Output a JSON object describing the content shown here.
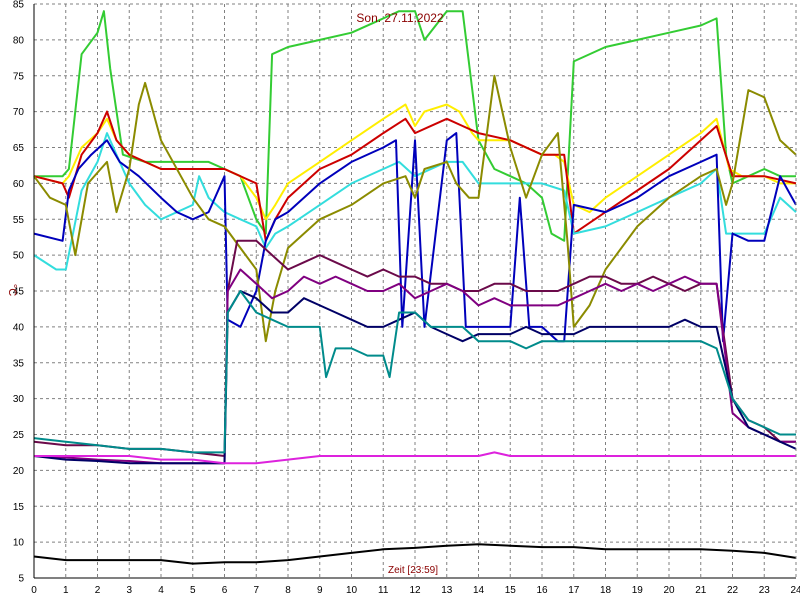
{
  "chart_data": {
    "type": "line",
    "title": "Son. 27.11.2022",
    "xlabel": "Zeit [23:59]",
    "ylabel": "°C",
    "xlim": [
      0,
      24
    ],
    "ylim": [
      5,
      85
    ],
    "xticks": [
      0,
      1,
      2,
      3,
      4,
      5,
      6,
      7,
      8,
      9,
      10,
      11,
      12,
      13,
      14,
      15,
      16,
      17,
      18,
      19,
      20,
      21,
      22,
      23,
      24
    ],
    "yticks": [
      5,
      10,
      15,
      20,
      25,
      30,
      35,
      40,
      45,
      50,
      55,
      60,
      65,
      70,
      75,
      80,
      85
    ],
    "grid": true,
    "series": [
      {
        "color": "#33cc33",
        "x": [
          0,
          0.9,
          1.1,
          1.5,
          2,
          2.2,
          2.4,
          2.8,
          3.5,
          4,
          4.5,
          5,
          5.5,
          6,
          6.5,
          7,
          7.3,
          7.5,
          8,
          9,
          10,
          11,
          11.5,
          12,
          12.3,
          13,
          13.5,
          14,
          14.5,
          15,
          15.5,
          16,
          16.3,
          16.7,
          17,
          18,
          19,
          20,
          21,
          21.5,
          21.8,
          22,
          22.5,
          23,
          23.5,
          24
        ],
        "y": [
          61,
          61,
          62,
          78,
          81,
          84,
          76,
          64,
          63,
          63,
          63,
          63,
          63,
          62,
          61,
          55,
          53,
          78,
          79,
          80,
          81,
          83,
          84,
          84,
          80,
          84,
          84,
          66,
          62,
          61,
          60,
          58,
          53,
          52,
          77,
          79,
          80,
          81,
          82,
          83,
          64,
          60,
          61,
          62,
          61,
          61
        ]
      },
      {
        "color": "#ffee00",
        "x": [
          0,
          0.9,
          1.1,
          1.5,
          2,
          2.3,
          2.6,
          3,
          3.5,
          4,
          4.5,
          5,
          5.5,
          6,
          6.5,
          7,
          7.3,
          7.6,
          8,
          9,
          10,
          11,
          11.7,
          12,
          12.3,
          13,
          13.4,
          13.8,
          14,
          14.5,
          15,
          15.5,
          16,
          16.4,
          16.7,
          17,
          17.5,
          18,
          19,
          20,
          21,
          21.5,
          21.9,
          22.3,
          23,
          23.5,
          24
        ],
        "y": [
          61,
          60,
          61,
          65,
          67,
          69,
          66,
          64,
          63,
          62,
          62,
          62,
          62,
          62,
          61,
          58,
          55,
          57,
          60,
          63,
          66,
          69,
          71,
          68,
          70,
          71,
          70,
          67,
          66,
          66,
          66,
          65,
          64,
          64,
          63,
          57,
          56,
          58,
          61,
          64,
          67,
          69,
          62,
          61,
          61,
          60,
          60
        ]
      },
      {
        "color": "#cc0000",
        "x": [
          0,
          0.9,
          1.1,
          1.5,
          2,
          2.3,
          2.6,
          3,
          4,
          5,
          6,
          7,
          7.3,
          7.6,
          8,
          9,
          10,
          11,
          11.7,
          12,
          13,
          13.5,
          14,
          15,
          16,
          16.7,
          17,
          18,
          19,
          20,
          21,
          21.5,
          22,
          23,
          24
        ],
        "y": [
          61,
          60,
          58,
          64,
          67,
          70,
          66,
          64,
          62,
          62,
          62,
          60,
          52,
          55,
          58,
          62,
          64,
          67,
          69,
          67,
          69,
          68,
          67,
          66,
          64,
          64,
          53,
          56,
          59,
          62,
          66,
          68,
          61,
          61,
          60
        ]
      },
      {
        "color": "#33dddd",
        "x": [
          0,
          0.7,
          1,
          1.5,
          2,
          2.3,
          2.7,
          3,
          3.5,
          4,
          4.5,
          5,
          5.2,
          5.5,
          6,
          6.5,
          7,
          7.3,
          7.6,
          8,
          9,
          10,
          11,
          11.5,
          12,
          13,
          13.5,
          14,
          15,
          16,
          16.7,
          17,
          18,
          19,
          20,
          21,
          21.5,
          21.8,
          22,
          22.5,
          23,
          23.5,
          24
        ],
        "y": [
          50,
          48,
          48,
          59,
          63,
          67,
          63,
          60,
          57,
          55,
          56,
          57,
          61,
          58,
          56,
          55,
          54,
          51,
          53,
          54,
          57,
          60,
          62,
          63,
          61,
          63,
          63,
          60,
          60,
          60,
          59,
          53,
          54,
          56,
          58,
          60,
          62,
          53,
          53,
          53,
          53,
          58,
          56
        ]
      },
      {
        "color": "#0000bb",
        "x": [
          0,
          0.9,
          1.1,
          1.4,
          1.8,
          2.3,
          2.7,
          3,
          3.3,
          4,
          4.5,
          5,
          5.5,
          6,
          6.1,
          6.5,
          7,
          7.3,
          7.6,
          8,
          9,
          10,
          11,
          11.4,
          11.6,
          12,
          12.3,
          13,
          13.3,
          13.6,
          14,
          15,
          15.3,
          15.6,
          16,
          16.5,
          16.7,
          17,
          18,
          19,
          20,
          21,
          21.5,
          21.7,
          22,
          22.5,
          23,
          23.5,
          24
        ],
        "y": [
          53,
          52,
          59,
          62,
          64,
          66,
          63,
          62,
          61,
          58,
          56,
          55,
          56,
          61,
          41,
          40,
          45,
          52,
          55,
          56,
          60,
          63,
          65,
          66,
          40,
          66,
          40,
          66,
          67,
          40,
          40,
          40,
          58,
          40,
          40,
          38,
          38,
          57,
          56,
          58,
          61,
          63,
          64,
          38,
          53,
          52,
          52,
          61,
          57
        ]
      },
      {
        "color": "#8b8b00",
        "x": [
          0,
          0.5,
          1,
          1.3,
          1.7,
          2.3,
          2.6,
          3,
          3.3,
          3.5,
          4,
          5,
          5.5,
          6,
          6.5,
          7,
          7.3,
          7.6,
          8,
          9,
          10,
          11,
          11.7,
          12,
          12.3,
          13,
          13.3,
          13.7,
          14,
          14.5,
          15,
          15.5,
          16,
          16.5,
          16.8,
          17,
          17.5,
          18,
          19,
          20,
          21,
          21.5,
          21.8,
          22,
          22.5,
          23,
          23.5,
          24
        ],
        "y": [
          61,
          58,
          57,
          50,
          60,
          63,
          56,
          62,
          71,
          74,
          66,
          58,
          55,
          54,
          51,
          48,
          38,
          45,
          51,
          55,
          57,
          60,
          61,
          58,
          62,
          63,
          60,
          58,
          58,
          75,
          65,
          58,
          64,
          67,
          52,
          40,
          43,
          48,
          54,
          58,
          61,
          62,
          57,
          60,
          73,
          72,
          66,
          64
        ]
      },
      {
        "color": "#6b0a4a",
        "x": [
          0,
          1,
          2,
          3,
          4,
          5,
          6,
          6.1,
          6.4,
          7,
          7.5,
          8,
          8.5,
          9,
          9.5,
          10,
          10.5,
          11,
          11.5,
          12,
          12.5,
          13,
          13.5,
          14,
          14.5,
          15,
          15.5,
          16,
          16.5,
          17,
          17.5,
          18,
          18.5,
          19,
          19.5,
          20,
          20.5,
          21,
          21.5,
          22,
          22.5,
          23,
          23.5,
          24
        ],
        "y": [
          24,
          23.5,
          23.5,
          23,
          23,
          22.5,
          22,
          45,
          52,
          52,
          50,
          48,
          49,
          50,
          49,
          48,
          47,
          48,
          47,
          47,
          46,
          46,
          45,
          45,
          46,
          46,
          45,
          45,
          45,
          46,
          47,
          47,
          46,
          46,
          47,
          46,
          45,
          46,
          46,
          30,
          27,
          26,
          24,
          24
        ]
      },
      {
        "color": "#800080",
        "x": [
          0,
          1,
          2,
          3,
          4,
          5,
          6,
          6.1,
          6.5,
          7,
          7.5,
          8,
          8.5,
          9,
          9.5,
          10,
          10.5,
          11,
          11.5,
          12,
          12.5,
          13,
          13.5,
          14,
          14.5,
          15,
          15.5,
          16,
          16.5,
          17,
          17.5,
          18,
          18.5,
          19,
          19.5,
          20,
          20.5,
          21,
          21.5,
          22,
          22.5,
          23,
          23.5,
          24
        ],
        "y": [
          22,
          21.8,
          21.5,
          21.3,
          21,
          21,
          21,
          45,
          48,
          46,
          44,
          45,
          47,
          46,
          47,
          46,
          45,
          45,
          46,
          44,
          45,
          46,
          45,
          43,
          44,
          43,
          43,
          43,
          43,
          44,
          45,
          46,
          45,
          46,
          45,
          46,
          47,
          46,
          46,
          28,
          26,
          25,
          24,
          24
        ]
      },
      {
        "color": "#000066",
        "x": [
          0,
          1,
          2,
          3,
          4,
          5,
          6,
          6.1,
          6.5,
          7,
          7.5,
          8,
          8.5,
          9,
          9.5,
          10,
          10.5,
          11,
          11.5,
          12,
          12.5,
          13,
          13.5,
          14,
          14.5,
          15,
          15.5,
          16,
          16.5,
          17,
          17.5,
          18,
          18.5,
          19,
          19.5,
          20,
          20.5,
          21,
          21.5,
          22,
          22.5,
          23,
          23.5,
          24
        ],
        "y": [
          22,
          21.5,
          21.3,
          21,
          21,
          21,
          21,
          42,
          45,
          44,
          42,
          42,
          44,
          43,
          42,
          41,
          40,
          40,
          41,
          42,
          40,
          39,
          38,
          39,
          39,
          39,
          40,
          39,
          39,
          39,
          40,
          40,
          40,
          40,
          40,
          40,
          41,
          40,
          40,
          30,
          26,
          25,
          24,
          23
        ]
      },
      {
        "color": "#008b8b",
        "x": [
          0,
          1,
          2,
          3,
          4,
          5,
          6,
          6.1,
          6.5,
          7,
          7.5,
          8,
          8.5,
          9,
          9.2,
          9.5,
          10,
          10.5,
          11,
          11.2,
          11.5,
          12,
          12.5,
          13,
          13.5,
          14,
          14.5,
          15,
          15.5,
          16,
          16.5,
          17,
          17.5,
          18,
          18.5,
          19,
          19.5,
          20,
          20.5,
          21,
          21.5,
          22,
          22.5,
          23,
          23.5,
          24
        ],
        "y": [
          24.5,
          24,
          23.5,
          23,
          23,
          22.5,
          22.5,
          42,
          45,
          42,
          41,
          40,
          40,
          40,
          33,
          37,
          37,
          36,
          36,
          33,
          42,
          42,
          40,
          40,
          40,
          38,
          38,
          38,
          37,
          38,
          38,
          38,
          38,
          38,
          38,
          38,
          38,
          38,
          38,
          38,
          37,
          30,
          27,
          26,
          25,
          25
        ]
      },
      {
        "color": "#dd22dd",
        "x": [
          0,
          1,
          2,
          3,
          4,
          5,
          6,
          7,
          8,
          9,
          10,
          11,
          12,
          13,
          14,
          14.5,
          15,
          16,
          17,
          18,
          19,
          20,
          21,
          22,
          23,
          24
        ],
        "y": [
          22,
          22,
          22,
          22,
          21.5,
          21.5,
          21,
          21,
          21.5,
          22,
          22,
          22,
          22,
          22,
          22,
          22.5,
          22,
          22,
          22,
          22,
          22,
          22,
          22,
          22,
          22,
          22
        ]
      },
      {
        "color": "#000000",
        "x": [
          0,
          1,
          2,
          3,
          4,
          5,
          6,
          7,
          8,
          9,
          10,
          11,
          12,
          13,
          14,
          15,
          16,
          17,
          18,
          19,
          20,
          21,
          22,
          23,
          24
        ],
        "y": [
          8,
          7.5,
          7.5,
          7.5,
          7.5,
          7,
          7.2,
          7.2,
          7.5,
          8,
          8.5,
          9,
          9.2,
          9.5,
          9.7,
          9.5,
          9.3,
          9.3,
          9,
          9,
          9,
          9,
          8.8,
          8.5,
          7.8
        ]
      }
    ]
  }
}
